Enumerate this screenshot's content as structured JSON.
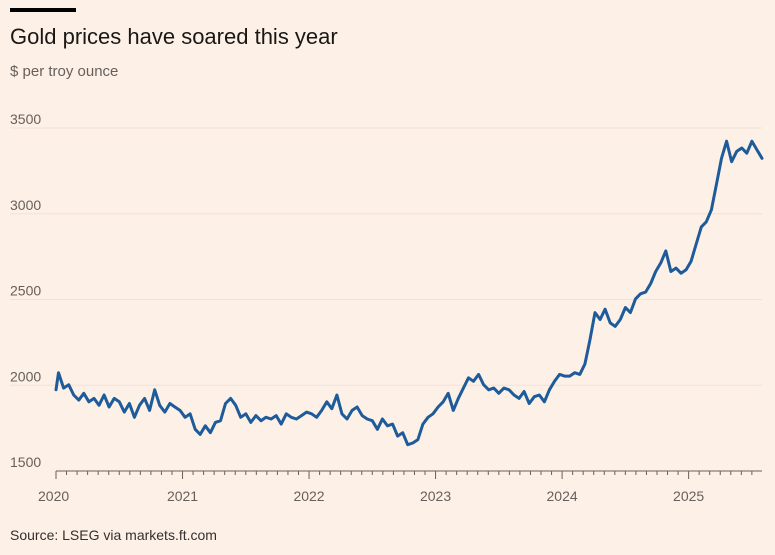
{
  "header": {
    "title": "Gold prices have soared this year",
    "subtitle": "$ per troy ounce"
  },
  "footer": {
    "source": "Source: LSEG via markets.ft.com"
  },
  "colors": {
    "background": "#fdf0e6",
    "line": "#1d5b9a",
    "gridline": "#f1e2d6",
    "text": "#66605c"
  },
  "chart_data": {
    "type": "line",
    "title": "Gold prices have soared this year",
    "ylabel": "$ per troy ounce",
    "xlabel": "",
    "xlim": [
      2020.0,
      2025.58
    ],
    "ylim": [
      1500,
      3500
    ],
    "y_ticks": [
      1500,
      2000,
      2500,
      3000,
      3500
    ],
    "x_ticks": [
      {
        "label": "2020",
        "value": 2020.0
      },
      {
        "label": "2021",
        "value": 2021.0
      },
      {
        "label": "2022",
        "value": 2022.0
      },
      {
        "label": "2023",
        "value": 2023.0
      },
      {
        "label": "2024",
        "value": 2024.0
      },
      {
        "label": "2025",
        "value": 2025.0
      }
    ],
    "grid": true,
    "series": [
      {
        "name": "Gold price",
        "x": [
          2020.0,
          2020.02,
          2020.06,
          2020.1,
          2020.14,
          2020.18,
          2020.22,
          2020.26,
          2020.3,
          2020.34,
          2020.38,
          2020.42,
          2020.46,
          2020.5,
          2020.54,
          2020.58,
          2020.62,
          2020.66,
          2020.7,
          2020.74,
          2020.78,
          2020.82,
          2020.86,
          2020.9,
          2020.94,
          2020.98,
          2021.02,
          2021.06,
          2021.1,
          2021.14,
          2021.18,
          2021.22,
          2021.26,
          2021.3,
          2021.34,
          2021.38,
          2021.42,
          2021.46,
          2021.5,
          2021.54,
          2021.58,
          2021.62,
          2021.66,
          2021.7,
          2021.74,
          2021.78,
          2021.82,
          2021.86,
          2021.9,
          2021.94,
          2021.98,
          2022.02,
          2022.06,
          2022.1,
          2022.14,
          2022.18,
          2022.22,
          2022.26,
          2022.3,
          2022.34,
          2022.38,
          2022.42,
          2022.46,
          2022.5,
          2022.54,
          2022.58,
          2022.62,
          2022.66,
          2022.7,
          2022.74,
          2022.78,
          2022.82,
          2022.86,
          2022.9,
          2022.94,
          2022.98,
          2023.02,
          2023.06,
          2023.1,
          2023.14,
          2023.18,
          2023.22,
          2023.26,
          2023.3,
          2023.34,
          2023.38,
          2023.42,
          2023.46,
          2023.5,
          2023.54,
          2023.58,
          2023.62,
          2023.66,
          2023.7,
          2023.74,
          2023.78,
          2023.82,
          2023.86,
          2023.9,
          2023.94,
          2023.98,
          2024.02,
          2024.06,
          2024.1,
          2024.14,
          2024.18,
          2024.22,
          2024.26,
          2024.3,
          2024.34,
          2024.38,
          2024.42,
          2024.46,
          2024.5,
          2024.54,
          2024.58,
          2024.62,
          2024.66,
          2024.7,
          2024.74,
          2024.78,
          2024.82,
          2024.86,
          2024.9,
          2024.94,
          2024.98,
          2025.02,
          2025.06,
          2025.1,
          2025.14,
          2025.18,
          2025.22,
          2025.26,
          2025.3,
          2025.34,
          2025.38,
          2025.42,
          2025.46,
          2025.5,
          2025.54,
          2025.58
        ],
        "values": [
          1950,
          2050,
          1960,
          1980,
          1920,
          1890,
          1930,
          1880,
          1900,
          1860,
          1920,
          1850,
          1900,
          1880,
          1820,
          1870,
          1790,
          1860,
          1900,
          1830,
          1950,
          1860,
          1820,
          1870,
          1850,
          1830,
          1790,
          1810,
          1720,
          1690,
          1740,
          1700,
          1760,
          1770,
          1870,
          1900,
          1860,
          1790,
          1810,
          1760,
          1800,
          1770,
          1790,
          1780,
          1800,
          1750,
          1810,
          1790,
          1780,
          1800,
          1820,
          1810,
          1790,
          1830,
          1880,
          1840,
          1920,
          1810,
          1780,
          1830,
          1850,
          1800,
          1780,
          1770,
          1720,
          1780,
          1740,
          1750,
          1680,
          1700,
          1630,
          1640,
          1660,
          1750,
          1790,
          1810,
          1850,
          1880,
          1930,
          1830,
          1900,
          1960,
          2020,
          2000,
          2040,
          1980,
          1950,
          1960,
          1930,
          1960,
          1950,
          1920,
          1900,
          1940,
          1870,
          1910,
          1920,
          1880,
          1950,
          2000,
          2040,
          2030,
          2030,
          2050,
          2040,
          2100,
          2240,
          2400,
          2360,
          2420,
          2340,
          2320,
          2360,
          2430,
          2400,
          2480,
          2510,
          2520,
          2570,
          2640,
          2690,
          2760,
          2640,
          2660,
          2630,
          2650,
          2700,
          2800,
          2900,
          2930,
          3000,
          3150,
          3300,
          3400,
          3280,
          3340,
          3360,
          3330,
          3400,
          3350,
          3300
        ]
      }
    ]
  }
}
